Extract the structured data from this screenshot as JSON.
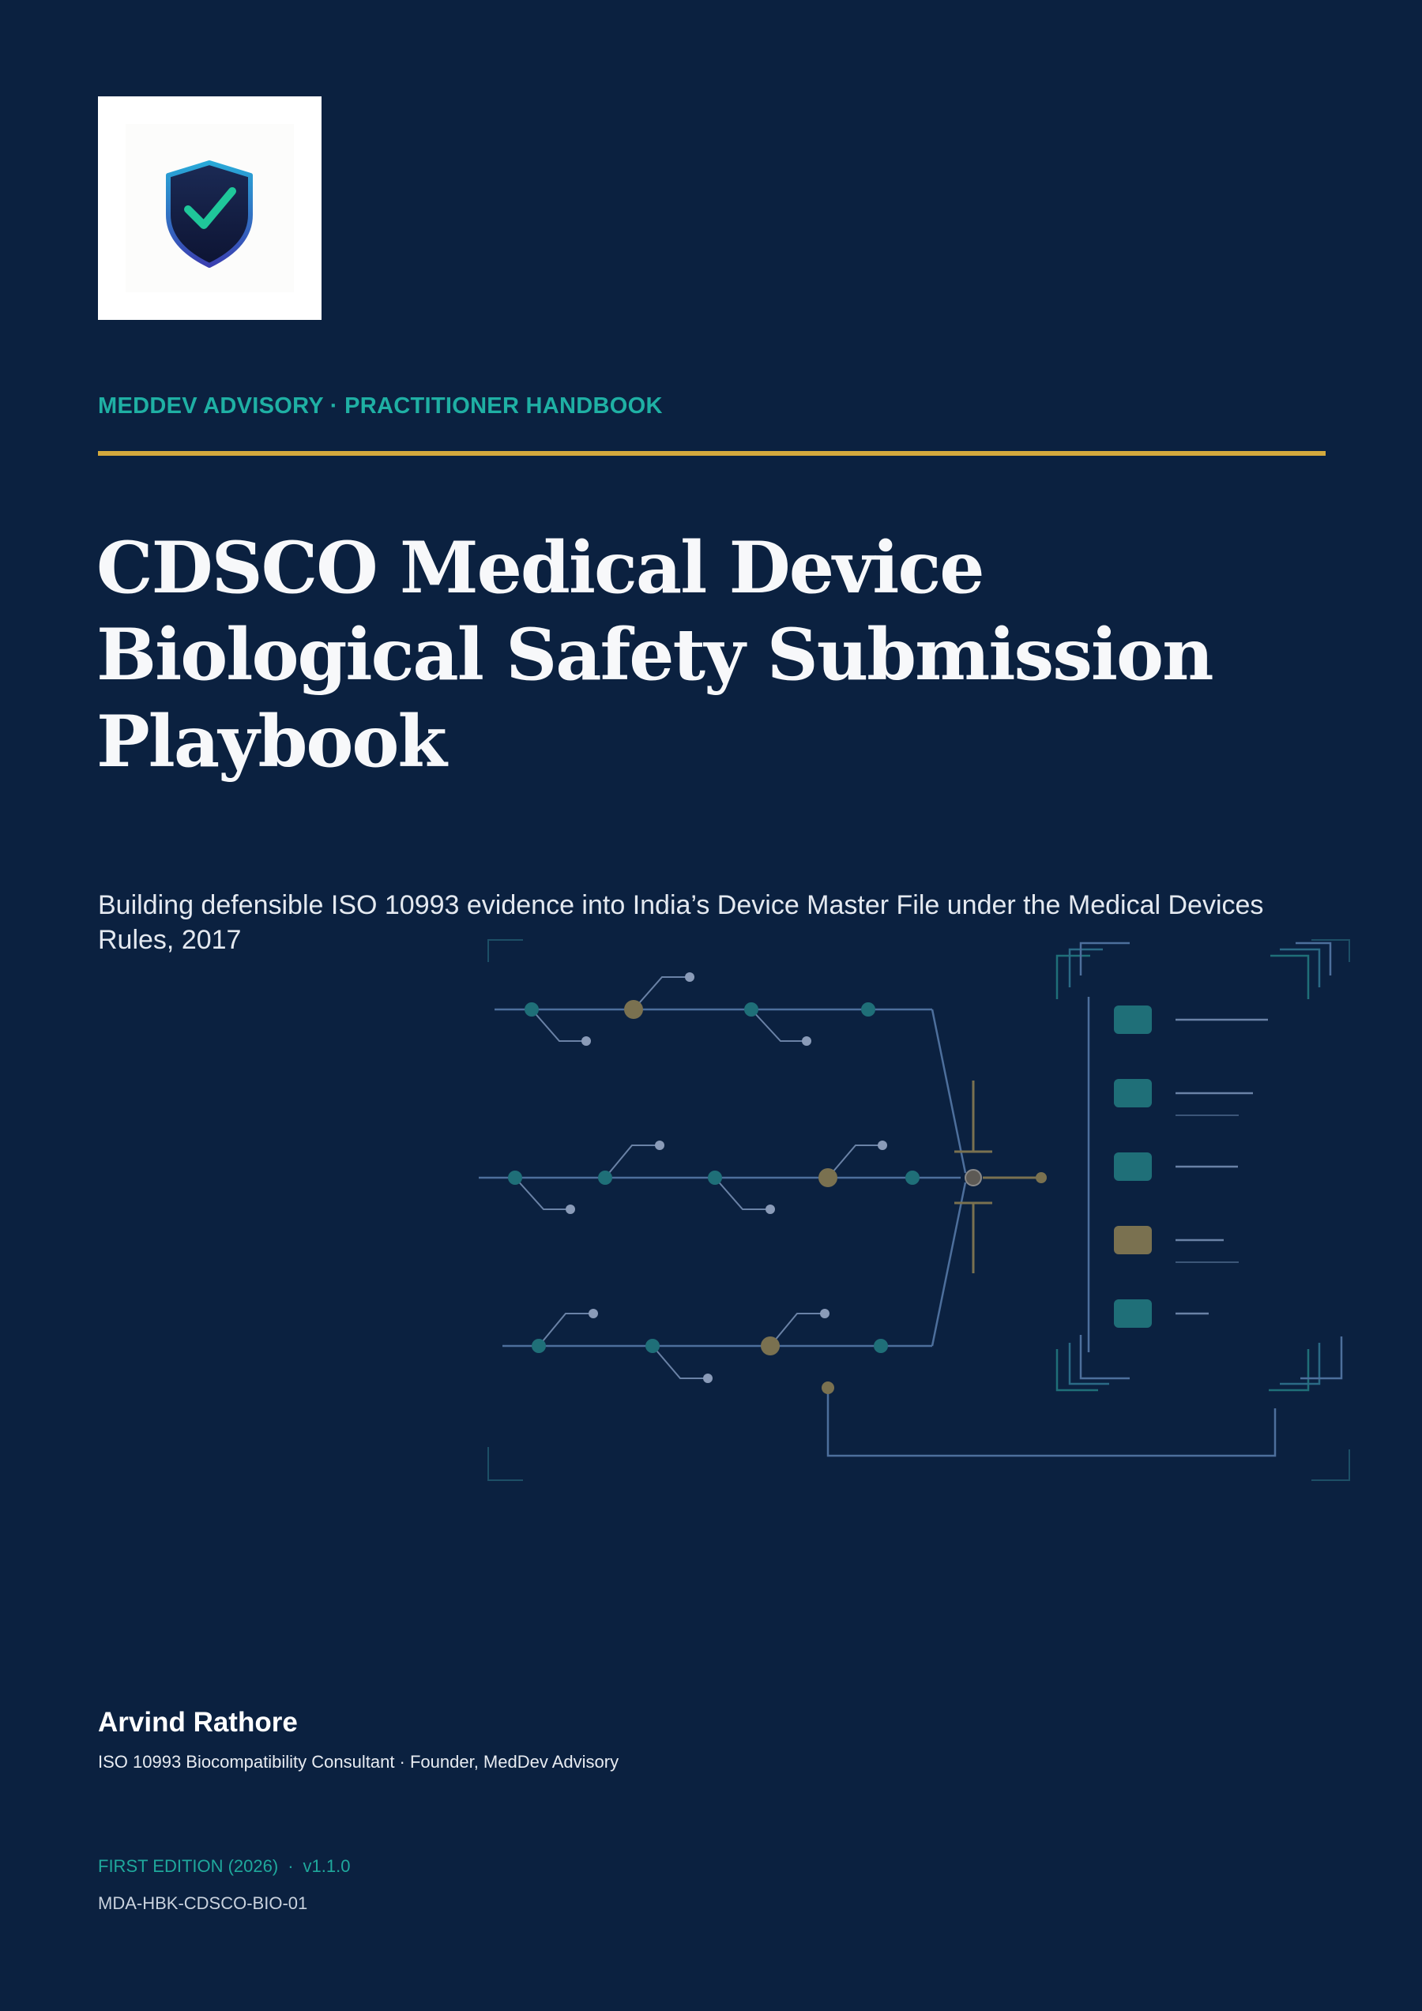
{
  "brand": {
    "logo_icon": "shield-check-icon",
    "kicker": "MEDDEV ADVISORY · PRACTITIONER HANDBOOK"
  },
  "title_lines": [
    "CDSCO Medical Device",
    "Biological Safety Submission",
    "Playbook"
  ],
  "subtitle": "Building defensible ISO 10993 evidence into India’s Device Master File under the Medical Devices Rules, 2017",
  "author": {
    "name": "Arvind Rathore",
    "role": "ISO 10993 Biocompatibility Consultant · Founder, MedDev Advisory"
  },
  "edition": {
    "label": "FIRST EDITION (2026)",
    "separator": "·",
    "version": "v1.1.0"
  },
  "doc_code": "MDA-HBK-CDSCO-BIO-01",
  "colors": {
    "background": "#0b2140",
    "accent_teal": "#1fb0a4",
    "accent_gold": "#d4a93d",
    "node_teal": "#1f6f78",
    "node_olive": "#7a7150",
    "line_blue": "#4a6a95"
  }
}
